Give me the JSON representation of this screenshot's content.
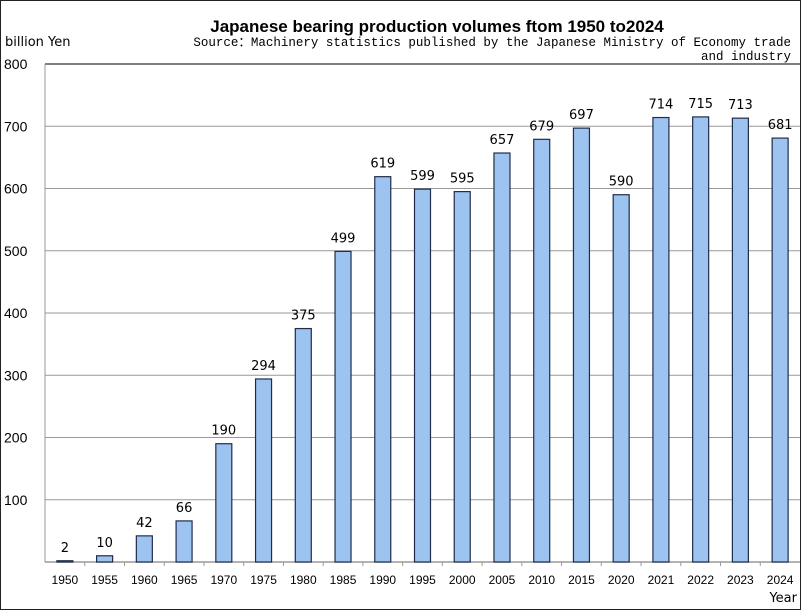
{
  "chart_data": {
    "type": "bar",
    "title": "Japanese bearing production volumes ftom 1950 to2024",
    "subtitle_lines": [
      "Source：Machinery statistics published by the Japanese Ministry of Economy trade",
      "and industry"
    ],
    "ylabel": "billion Yen",
    "xlabel": "Year",
    "ylim": [
      0,
      800
    ],
    "yticks": [
      100,
      200,
      300,
      400,
      500,
      600,
      700,
      800
    ],
    "grid": true,
    "categories": [
      "1950",
      "1955",
      "1960",
      "1965",
      "1970",
      "1975",
      "1980",
      "1985",
      "1990",
      "1995",
      "2000",
      "2005",
      "2010",
      "2015",
      "2020",
      "2021",
      "2022",
      "2023",
      "2024"
    ],
    "values": [
      2,
      10,
      42,
      66,
      190,
      294,
      375,
      499,
      619,
      599,
      595,
      657,
      679,
      697,
      590,
      714,
      715,
      713,
      681
    ],
    "bar_color": "#9dc3f0",
    "bar_edge_color": "#1f2d4a"
  }
}
